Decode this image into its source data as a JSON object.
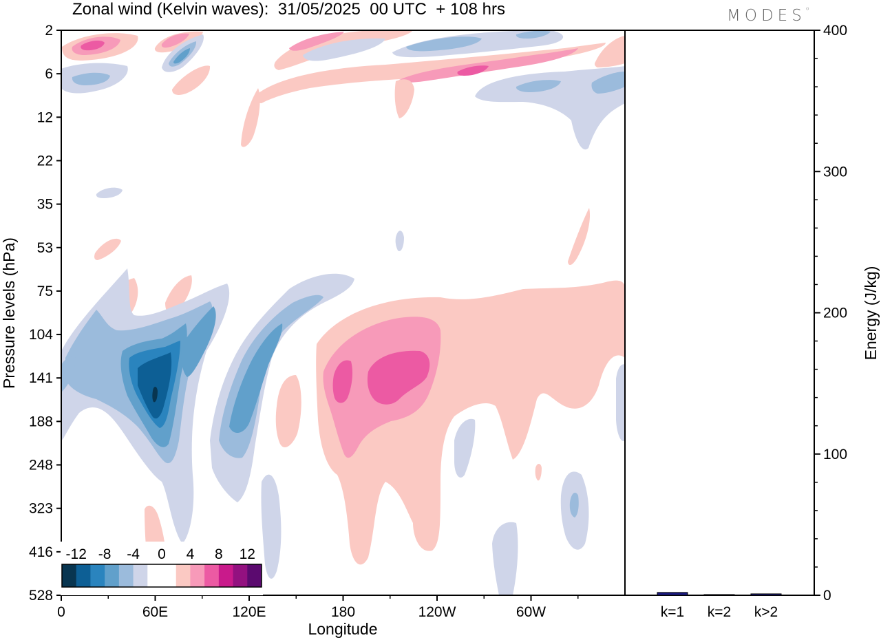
{
  "logo": "MODES",
  "chart_data": [
    {
      "type": "heatmap",
      "title": "Zonal wind (Kelvin waves):  31/05/2025  00 UTC  + 108 hrs",
      "xlabel": "Longitude",
      "ylabel": "Pressure levels (hPa)",
      "x_ticks": [
        "0",
        "60E",
        "120E",
        "180",
        "120W",
        "60W"
      ],
      "y_ticks": [
        "2",
        "6",
        "12",
        "22",
        "35",
        "53",
        "75",
        "104",
        "141",
        "188",
        "248",
        "323",
        "416",
        "528"
      ],
      "xlim_deg": [
        0,
        360
      ],
      "colorbar": {
        "labels": [
          "-12",
          "-8",
          "-4",
          "0",
          "4",
          "8",
          "12"
        ],
        "levels": [
          -14,
          -12,
          -10,
          -8,
          -6,
          -4,
          -2,
          0,
          2,
          4,
          6,
          8,
          10,
          12,
          14
        ],
        "colors": [
          "#083550",
          "#0d5f95",
          "#2a84be",
          "#61a0cb",
          "#9bbbdc",
          "#cfd5e9",
          "#ffffff",
          "#ffffff",
          "#fbc9c3",
          "#f79ab9",
          "#ec5aa3",
          "#c91a8b",
          "#931180",
          "#5b0a6f"
        ]
      },
      "features": [
        {
          "kind": "negative",
          "lon": 60,
          "level": 150,
          "min": -13
        },
        {
          "kind": "negative",
          "lon": 120,
          "level": 170,
          "min": -6
        },
        {
          "kind": "positive",
          "lon": 190,
          "level": 150,
          "max": 9
        },
        {
          "kind": "positive",
          "lon": 205,
          "level": 140,
          "max": 9
        }
      ]
    },
    {
      "type": "bar",
      "categories": [
        "k=1",
        "k=2",
        "k>2"
      ],
      "values": [
        2,
        0.5,
        1
      ],
      "ylabel": "Energy (J/kg)",
      "ylim": [
        0,
        400
      ],
      "y_ticks": [
        "0",
        "100",
        "200",
        "300",
        "400"
      ],
      "bar_color": "#1a1a80"
    }
  ]
}
